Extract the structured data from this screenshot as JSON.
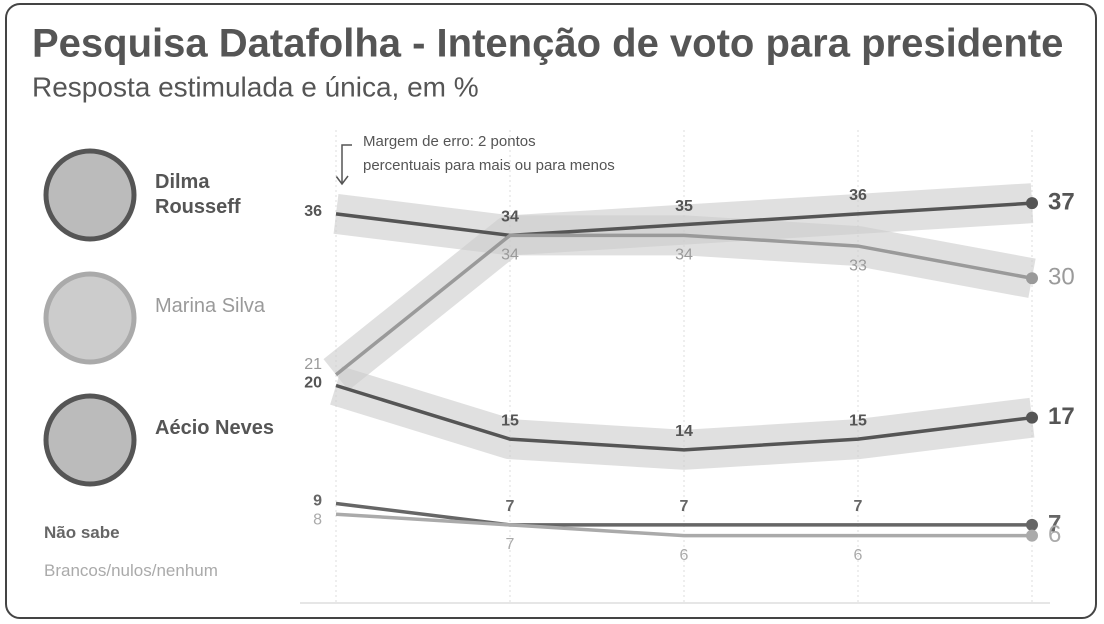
{
  "chart_data": {
    "type": "line",
    "title": "Pesquisa Datafolha - Intenção de voto para presidente",
    "subtitle": "Resposta estimulada e única, em %",
    "annotation": [
      "Margem de erro: 2 pontos",
      "percentuais para mais ou para menos"
    ],
    "categories": [
      null,
      null,
      null,
      null,
      null
    ],
    "ylim": [
      0,
      40
    ],
    "series": [
      {
        "name": "Dilma Rousseff",
        "color": "#555555",
        "values": [
          36,
          34,
          35,
          36,
          37
        ],
        "band": true,
        "label_side": "above"
      },
      {
        "name": "Marina Silva",
        "color": "#9a9a9a",
        "values": [
          21,
          34,
          34,
          33,
          30
        ],
        "band": true,
        "label_side": "below"
      },
      {
        "name": "Aécio Neves",
        "color": "#555555",
        "values": [
          20,
          15,
          14,
          15,
          17
        ],
        "band": true,
        "label_side": "above"
      },
      {
        "name": "Não sabe",
        "color": "#666666",
        "values": [
          9,
          7,
          7,
          7,
          7
        ],
        "band": false,
        "label_side": "above"
      },
      {
        "name": "Brancos/nulos/nenhum",
        "color": "#aaaaaa",
        "values": [
          8,
          7,
          6,
          6,
          6
        ],
        "band": false,
        "label_side": "below"
      }
    ]
  }
}
